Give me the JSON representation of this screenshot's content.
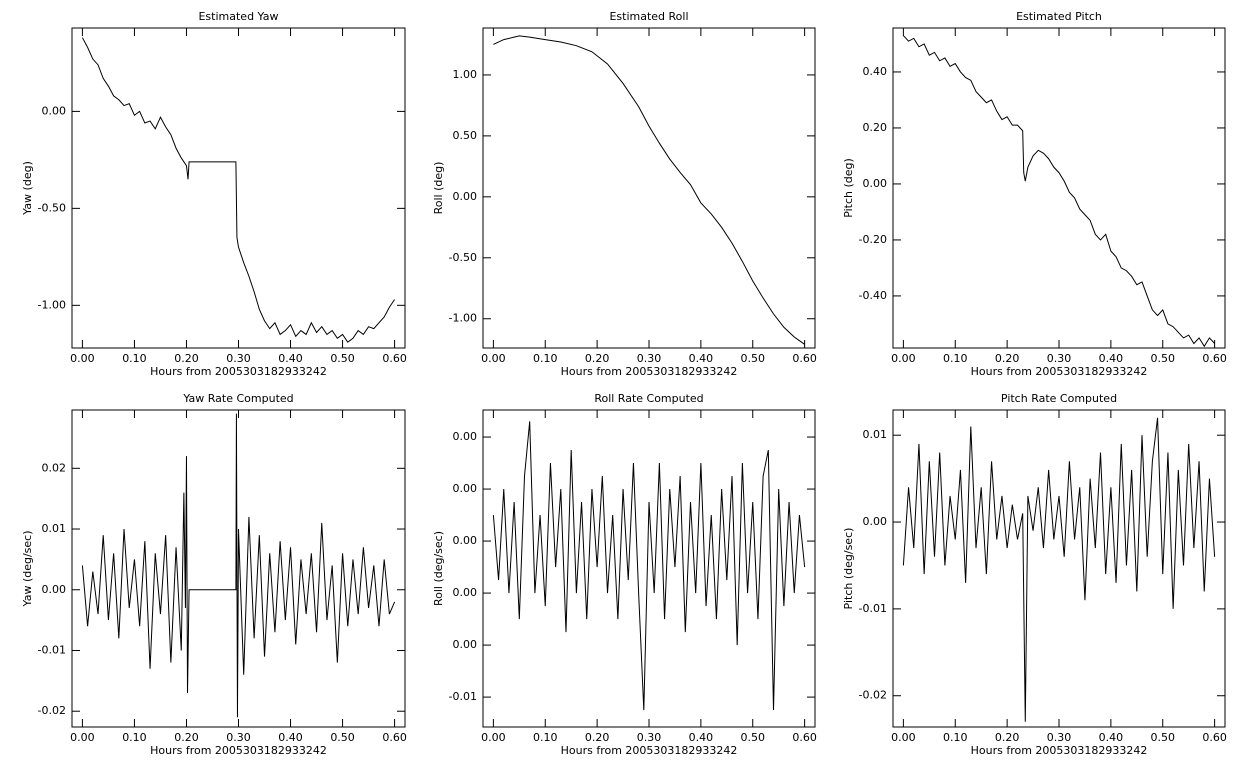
{
  "chart_data": [
    {
      "type": "line",
      "title": "Estimated Yaw",
      "xlabel": "Hours from 2005303182933242",
      "ylabel": "Yaw (deg)",
      "color": "#000000",
      "xlim": [
        -0.02,
        0.62
      ],
      "xticks": [
        {
          "value": 0,
          "label": "0.00"
        },
        {
          "value": 0.1,
          "label": "0.10"
        },
        {
          "value": 0.2,
          "label": "0.20"
        },
        {
          "value": 0.3,
          "label": "0.30"
        },
        {
          "value": 0.4,
          "label": "0.40"
        },
        {
          "value": 0.5,
          "label": "0.50"
        },
        {
          "value": 0.6,
          "label": "0.60"
        }
      ],
      "ylim": [
        -1.22,
        0.43
      ],
      "yticks": [
        {
          "value": 0,
          "label": "0.00"
        },
        {
          "value": -0.5,
          "label": "-0.50"
        },
        {
          "value": -1,
          "label": "-1.00"
        }
      ],
      "x": [
        0,
        0.01,
        0.02,
        0.03,
        0.04,
        0.05,
        0.06,
        0.07,
        0.08,
        0.09,
        0.1,
        0.11,
        0.12,
        0.13,
        0.14,
        0.15,
        0.16,
        0.17,
        0.18,
        0.19,
        0.2,
        0.203,
        0.205,
        0.295,
        0.297,
        0.3,
        0.31,
        0.32,
        0.33,
        0.34,
        0.35,
        0.36,
        0.37,
        0.38,
        0.39,
        0.4,
        0.41,
        0.42,
        0.43,
        0.44,
        0.45,
        0.46,
        0.47,
        0.48,
        0.49,
        0.5,
        0.51,
        0.52,
        0.53,
        0.54,
        0.55,
        0.56,
        0.57,
        0.58,
        0.59,
        0.6
      ],
      "values": [
        0.38,
        0.33,
        0.27,
        0.24,
        0.17,
        0.13,
        0.08,
        0.06,
        0.03,
        0.04,
        -0.02,
        0.0,
        -0.06,
        -0.05,
        -0.09,
        -0.03,
        -0.08,
        -0.12,
        -0.19,
        -0.24,
        -0.28,
        -0.35,
        -0.26,
        -0.26,
        -0.65,
        -0.7,
        -0.78,
        -0.85,
        -0.93,
        -1.02,
        -1.08,
        -1.12,
        -1.09,
        -1.15,
        -1.13,
        -1.1,
        -1.16,
        -1.13,
        -1.15,
        -1.09,
        -1.14,
        -1.11,
        -1.15,
        -1.13,
        -1.17,
        -1.15,
        -1.19,
        -1.17,
        -1.13,
        -1.15,
        -1.11,
        -1.12,
        -1.09,
        -1.06,
        -1.01,
        -0.97
      ]
    },
    {
      "type": "line",
      "title": "Estimated Roll",
      "xlabel": "Hours from 2005303182933242",
      "ylabel": "Roll (deg)",
      "color": "#000000",
      "xlim": [
        -0.02,
        0.62
      ],
      "xticks": [
        {
          "value": 0,
          "label": "0.00"
        },
        {
          "value": 0.1,
          "label": "0.10"
        },
        {
          "value": 0.2,
          "label": "0.20"
        },
        {
          "value": 0.3,
          "label": "0.30"
        },
        {
          "value": 0.4,
          "label": "0.40"
        },
        {
          "value": 0.5,
          "label": "0.50"
        },
        {
          "value": 0.6,
          "label": "0.60"
        }
      ],
      "ylim": [
        -1.24,
        1.385
      ],
      "yticks": [
        {
          "value": 1,
          "label": "1.00"
        },
        {
          "value": 0.5,
          "label": "0.50"
        },
        {
          "value": 0,
          "label": "0.00"
        },
        {
          "value": -0.5,
          "label": "-0.50"
        },
        {
          "value": -1,
          "label": "-1.00"
        }
      ],
      "x": [
        0,
        0.02,
        0.04,
        0.05,
        0.07,
        0.1,
        0.13,
        0.16,
        0.19,
        0.22,
        0.25,
        0.28,
        0.3,
        0.32,
        0.34,
        0.36,
        0.38,
        0.4,
        0.42,
        0.44,
        0.46,
        0.48,
        0.5,
        0.52,
        0.54,
        0.56,
        0.58,
        0.59,
        0.6
      ],
      "values": [
        1.25,
        1.29,
        1.31,
        1.32,
        1.31,
        1.29,
        1.27,
        1.24,
        1.19,
        1.09,
        0.93,
        0.74,
        0.58,
        0.44,
        0.31,
        0.2,
        0.1,
        -0.05,
        -0.14,
        -0.25,
        -0.38,
        -0.53,
        -0.69,
        -0.83,
        -0.96,
        -1.07,
        -1.15,
        -1.18,
        -1.21
      ]
    },
    {
      "type": "line",
      "title": "Estimated Pitch",
      "xlabel": "Hours from 2005303182933242",
      "ylabel": "Pitch (deg)",
      "color": "#000000",
      "xlim": [
        -0.02,
        0.62
      ],
      "xticks": [
        {
          "value": 0,
          "label": "0.00"
        },
        {
          "value": 0.1,
          "label": "0.10"
        },
        {
          "value": 0.2,
          "label": "0.20"
        },
        {
          "value": 0.3,
          "label": "0.30"
        },
        {
          "value": 0.4,
          "label": "0.40"
        },
        {
          "value": 0.5,
          "label": "0.50"
        },
        {
          "value": 0.6,
          "label": "0.60"
        }
      ],
      "ylim": [
        -0.586,
        0.557
      ],
      "yticks": [
        {
          "value": 0.4,
          "label": "0.40"
        },
        {
          "value": 0.2,
          "label": "0.20"
        },
        {
          "value": 0,
          "label": "0.00"
        },
        {
          "value": -0.2,
          "label": "-0.20"
        },
        {
          "value": -0.4,
          "label": "-0.40"
        }
      ],
      "x": [
        0,
        0.01,
        0.02,
        0.03,
        0.04,
        0.05,
        0.06,
        0.07,
        0.08,
        0.09,
        0.1,
        0.11,
        0.12,
        0.13,
        0.14,
        0.15,
        0.16,
        0.17,
        0.18,
        0.19,
        0.2,
        0.21,
        0.22,
        0.23,
        0.232,
        0.235,
        0.24,
        0.25,
        0.26,
        0.27,
        0.28,
        0.29,
        0.3,
        0.31,
        0.32,
        0.33,
        0.34,
        0.35,
        0.36,
        0.37,
        0.38,
        0.39,
        0.4,
        0.41,
        0.42,
        0.43,
        0.44,
        0.45,
        0.46,
        0.47,
        0.48,
        0.49,
        0.5,
        0.51,
        0.52,
        0.53,
        0.54,
        0.55,
        0.56,
        0.57,
        0.58,
        0.59,
        0.6
      ],
      "values": [
        0.53,
        0.51,
        0.52,
        0.49,
        0.5,
        0.46,
        0.47,
        0.44,
        0.45,
        0.42,
        0.43,
        0.4,
        0.38,
        0.37,
        0.33,
        0.31,
        0.29,
        0.3,
        0.26,
        0.23,
        0.24,
        0.21,
        0.21,
        0.19,
        0.04,
        0.01,
        0.06,
        0.1,
        0.12,
        0.11,
        0.09,
        0.06,
        0.04,
        0.01,
        -0.03,
        -0.05,
        -0.09,
        -0.11,
        -0.13,
        -0.18,
        -0.2,
        -0.18,
        -0.24,
        -0.26,
        -0.3,
        -0.31,
        -0.33,
        -0.36,
        -0.35,
        -0.4,
        -0.45,
        -0.47,
        -0.45,
        -0.5,
        -0.51,
        -0.53,
        -0.55,
        -0.54,
        -0.57,
        -0.55,
        -0.58,
        -0.55,
        -0.57
      ]
    },
    {
      "type": "line",
      "title": "Yaw Rate Computed",
      "xlabel": "Hours from 2005303182933242",
      "ylabel": "Yaw (deg/sec)",
      "color": "#000000",
      "xlim": [
        -0.02,
        0.62
      ],
      "xticks": [
        {
          "value": 0,
          "label": "0.00"
        },
        {
          "value": 0.1,
          "label": "0.10"
        },
        {
          "value": 0.2,
          "label": "0.20"
        },
        {
          "value": 0.3,
          "label": "0.30"
        },
        {
          "value": 0.4,
          "label": "0.40"
        },
        {
          "value": 0.5,
          "label": "0.50"
        },
        {
          "value": 0.6,
          "label": "0.60"
        }
      ],
      "ylim": [
        -0.0226,
        0.0296
      ],
      "yticks": [
        0.02,
        0.01,
        {
          "value": 0,
          "label": "0.00"
        },
        -0.01,
        -0.02
      ],
      "x": [
        0,
        0.01,
        0.02,
        0.03,
        0.04,
        0.05,
        0.06,
        0.07,
        0.08,
        0.09,
        0.1,
        0.11,
        0.12,
        0.13,
        0.14,
        0.15,
        0.16,
        0.17,
        0.18,
        0.19,
        0.195,
        0.198,
        0.2,
        0.202,
        0.205,
        0.295,
        0.296,
        0.298,
        0.3,
        0.31,
        0.32,
        0.33,
        0.34,
        0.35,
        0.36,
        0.37,
        0.38,
        0.39,
        0.4,
        0.41,
        0.42,
        0.43,
        0.44,
        0.45,
        0.46,
        0.47,
        0.48,
        0.49,
        0.5,
        0.51,
        0.52,
        0.53,
        0.54,
        0.55,
        0.56,
        0.57,
        0.58,
        0.59,
        0.6
      ],
      "values": [
        0.004,
        -0.006,
        0.003,
        -0.004,
        0.009,
        -0.005,
        0.006,
        -0.008,
        0.01,
        -0.003,
        0.005,
        -0.006,
        0.008,
        -0.013,
        0.006,
        -0.004,
        0.009,
        -0.012,
        0.007,
        -0.01,
        0.016,
        -0.003,
        0.022,
        -0.017,
        0.0,
        0.0,
        0.029,
        -0.021,
        0.01,
        -0.014,
        0.012,
        -0.008,
        0.009,
        -0.011,
        0.006,
        -0.007,
        0.008,
        -0.005,
        0.007,
        -0.009,
        0.005,
        -0.004,
        0.006,
        -0.007,
        0.011,
        -0.005,
        0.004,
        -0.012,
        0.006,
        -0.006,
        0.005,
        -0.004,
        0.007,
        -0.003,
        0.004,
        -0.006,
        0.005,
        -0.004,
        -0.002
      ]
    },
    {
      "type": "line",
      "title": "Roll Rate Computed",
      "xlabel": "Hours from 2005303182933242",
      "ylabel": "Roll (deg/sec)",
      "color": "#000000",
      "xlim": [
        -0.02,
        0.62
      ],
      "xticks": [
        {
          "value": 0,
          "label": "0.00"
        },
        {
          "value": 0.1,
          "label": "0.10"
        },
        {
          "value": 0.2,
          "label": "0.20"
        },
        {
          "value": 0.3,
          "label": "0.30"
        },
        {
          "value": 0.4,
          "label": "0.40"
        },
        {
          "value": 0.5,
          "label": "0.50"
        },
        {
          "value": 0.6,
          "label": "0.60"
        }
      ],
      "ylim": [
        -0.00715,
        0.00504
      ],
      "yticks": [
        {
          "value": 0.004,
          "label": "0.00"
        },
        {
          "value": 0.002,
          "label": "0.00"
        },
        {
          "value": 0,
          "label": "0.00"
        },
        {
          "value": -0.002,
          "label": "0.00"
        },
        {
          "value": -0.004,
          "label": "0.00"
        },
        {
          "value": -0.006,
          "label": "-0.01"
        }
      ],
      "x": [
        0,
        0.01,
        0.02,
        0.03,
        0.04,
        0.05,
        0.06,
        0.07,
        0.08,
        0.09,
        0.1,
        0.11,
        0.12,
        0.13,
        0.14,
        0.15,
        0.16,
        0.17,
        0.18,
        0.19,
        0.2,
        0.21,
        0.22,
        0.23,
        0.24,
        0.25,
        0.26,
        0.27,
        0.28,
        0.29,
        0.3,
        0.31,
        0.32,
        0.33,
        0.34,
        0.35,
        0.36,
        0.37,
        0.38,
        0.39,
        0.4,
        0.41,
        0.42,
        0.43,
        0.44,
        0.45,
        0.46,
        0.47,
        0.48,
        0.49,
        0.5,
        0.51,
        0.52,
        0.53,
        0.54,
        0.55,
        0.56,
        0.57,
        0.58,
        0.59,
        0.6
      ],
      "values": [
        0.001,
        -0.0015,
        0.002,
        -0.002,
        0.0015,
        -0.003,
        0.0025,
        0.0046,
        -0.002,
        0.001,
        -0.0025,
        0.003,
        -0.001,
        0.002,
        -0.0035,
        0.0035,
        -0.002,
        0.0015,
        -0.003,
        0.002,
        -0.001,
        0.0025,
        -0.002,
        0.001,
        -0.003,
        0.002,
        -0.0015,
        0.003,
        -0.002,
        -0.0065,
        0.0015,
        -0.002,
        0.003,
        -0.003,
        0.002,
        -0.001,
        0.0025,
        -0.0035,
        0.0015,
        -0.002,
        0.003,
        -0.0025,
        0.001,
        -0.003,
        0.002,
        -0.0015,
        0.0025,
        -0.004,
        0.003,
        -0.002,
        0.0015,
        -0.003,
        0.0025,
        0.0035,
        -0.0065,
        0.002,
        -0.0025,
        0.0015,
        -0.002,
        0.001,
        -0.001
      ]
    },
    {
      "type": "line",
      "title": "Pitch Rate Computed",
      "xlabel": "Hours from 2005303182933242",
      "ylabel": "Pitch (deg/sec)",
      "color": "#000000",
      "xlim": [
        -0.02,
        0.62
      ],
      "xticks": [
        {
          "value": 0,
          "label": "0.00"
        },
        {
          "value": 0.1,
          "label": "0.10"
        },
        {
          "value": 0.2,
          "label": "0.20"
        },
        {
          "value": 0.3,
          "label": "0.30"
        },
        {
          "value": 0.4,
          "label": "0.40"
        },
        {
          "value": 0.5,
          "label": "0.50"
        },
        {
          "value": 0.6,
          "label": "0.60"
        }
      ],
      "ylim": [
        -0.0236,
        0.0129
      ],
      "yticks": [
        0.01,
        {
          "value": 0,
          "label": "0.00"
        },
        -0.01,
        -0.02
      ],
      "x": [
        0,
        0.01,
        0.02,
        0.03,
        0.04,
        0.05,
        0.06,
        0.07,
        0.08,
        0.09,
        0.1,
        0.11,
        0.12,
        0.13,
        0.14,
        0.15,
        0.16,
        0.17,
        0.18,
        0.19,
        0.2,
        0.21,
        0.22,
        0.23,
        0.235,
        0.24,
        0.25,
        0.26,
        0.27,
        0.28,
        0.29,
        0.3,
        0.31,
        0.32,
        0.33,
        0.34,
        0.35,
        0.36,
        0.37,
        0.38,
        0.39,
        0.4,
        0.41,
        0.42,
        0.43,
        0.44,
        0.45,
        0.46,
        0.47,
        0.48,
        0.49,
        0.5,
        0.51,
        0.52,
        0.53,
        0.54,
        0.55,
        0.56,
        0.57,
        0.58,
        0.59,
        0.6
      ],
      "values": [
        -0.005,
        0.004,
        -0.003,
        0.009,
        -0.006,
        0.007,
        -0.004,
        0.008,
        -0.005,
        0.003,
        -0.002,
        0.006,
        -0.007,
        0.011,
        -0.003,
        0.004,
        -0.006,
        0.007,
        -0.002,
        0.003,
        -0.003,
        0.002,
        -0.002,
        0.001,
        -0.023,
        0.003,
        -0.001,
        0.004,
        -0.003,
        0.006,
        -0.002,
        0.003,
        -0.004,
        0.007,
        -0.002,
        0.004,
        -0.009,
        0.005,
        -0.003,
        0.008,
        -0.006,
        0.004,
        -0.007,
        0.009,
        -0.005,
        0.006,
        -0.008,
        0.01,
        -0.004,
        0.007,
        0.012,
        -0.006,
        0.008,
        -0.01,
        0.006,
        -0.005,
        0.009,
        -0.003,
        0.007,
        -0.008,
        0.005,
        -0.004
      ]
    }
  ]
}
